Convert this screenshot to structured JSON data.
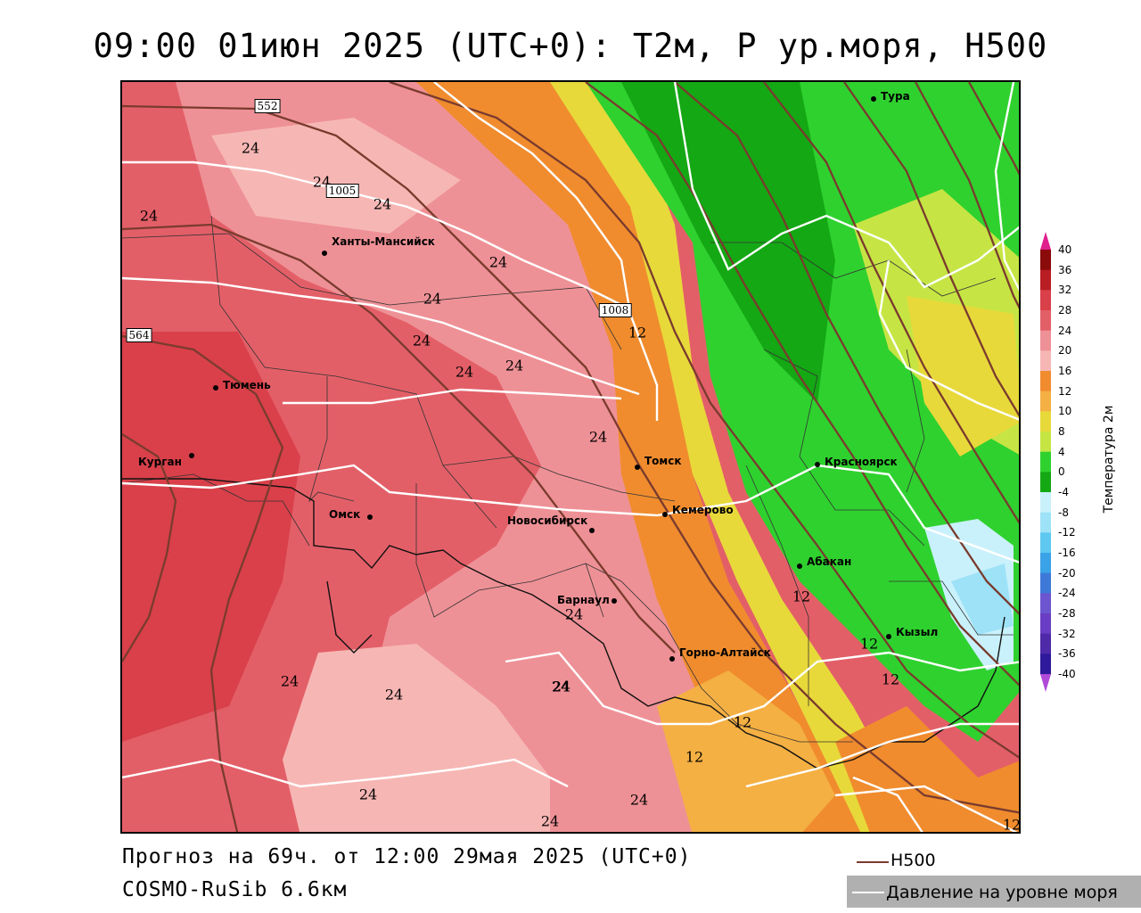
{
  "title": "09:00 01июн 2025 (UTC+0): Т2м, Р ур.моря, Н500",
  "footer": {
    "forecast": "Прогноз на 69ч. от 12:00 29мая 2025 (UTC+0)",
    "model": "COSMO-RuSib 6.6км"
  },
  "legend": {
    "h500": {
      "label": "H500",
      "color": "#7a3b2e"
    },
    "pressure": {
      "label": "Давление на уровне моря",
      "color": "#ffffff"
    }
  },
  "colorbar": {
    "title": "Температура 2м",
    "ticks": [
      "40",
      "36",
      "32",
      "28",
      "24",
      "20",
      "16",
      "12",
      "10",
      "8",
      "4",
      "0",
      "-4",
      "-8",
      "-12",
      "-16",
      "-20",
      "-24",
      "-28",
      "-32",
      "-36",
      "-40"
    ],
    "colors": [
      "#8b0a0a",
      "#b81e24",
      "#d9404a",
      "#e35f68",
      "#ee9196",
      "#f6b7b4",
      "#f08c2e",
      "#f4b043",
      "#e8d93a",
      "#c6e544",
      "#2fd12f",
      "#14a814",
      "#c9f1fb",
      "#9ee2f7",
      "#5ec8f0",
      "#3aa2e6",
      "#3e79d8",
      "#6c55cf",
      "#6a3ec4",
      "#4e2aa8",
      "#2e1a9a",
      "#1a0d8a"
    ]
  },
  "cities": [
    {
      "name": "Тура"
    },
    {
      "name": "Ханты-Мансийск"
    },
    {
      "name": "Тюмень"
    },
    {
      "name": "Курган"
    },
    {
      "name": "Омск"
    },
    {
      "name": "Томск"
    },
    {
      "name": "Красноярск"
    },
    {
      "name": "Кемерово"
    },
    {
      "name": "Новосибирск"
    },
    {
      "name": "Абакан"
    },
    {
      "name": "Барнаул"
    },
    {
      "name": "Кызыл"
    },
    {
      "name": "Горно-Алтайск"
    }
  ],
  "contour_labels": {
    "temperature": [
      "24",
      "24",
      "24",
      "24",
      "24",
      "24",
      "24",
      "24",
      "24",
      "24",
      "24",
      "24",
      "24",
      "24",
      "24",
      "12",
      "12",
      "12",
      "12",
      "12",
      "12",
      "12"
    ],
    "pressure": [
      "1005",
      "1008",
      "552",
      "564"
    ]
  }
}
